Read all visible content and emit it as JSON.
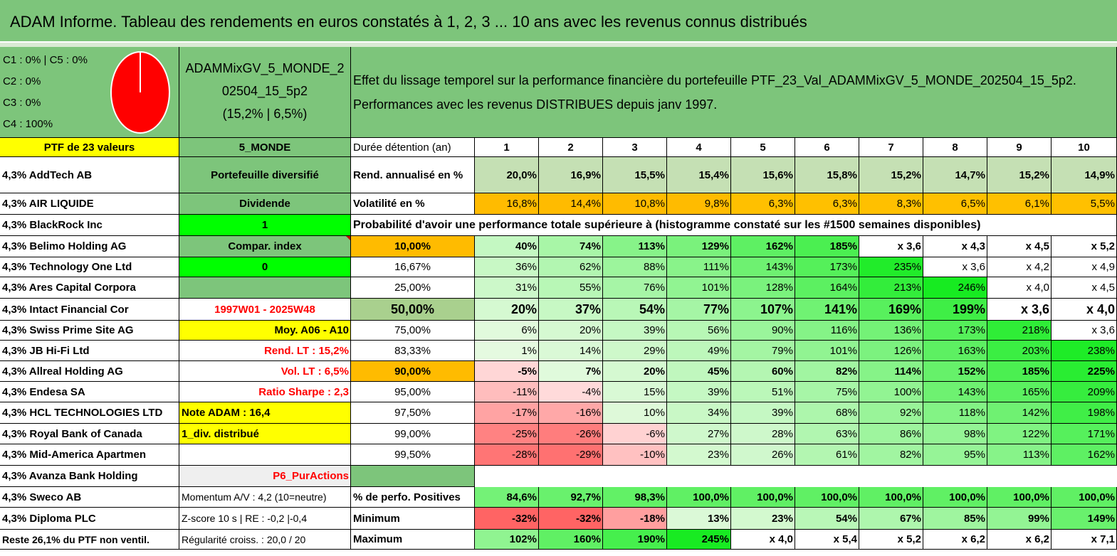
{
  "title": "ADAM Informe. Tableau des rendements en euros constatés à 1, 2, 3 ... 10 ans avec les revenus connus distribués",
  "allocation": {
    "c1c5": "C1 : 0% | C5 : 0%",
    "c2": "C2 : 0%",
    "c3": "C3 : 0%",
    "c4": "C4 : 100%",
    "pie_color": "#ff0000"
  },
  "portfolio": {
    "name_line1": "ADAMMixGV_5_MONDE_2",
    "name_line2": "02504_15_5p2",
    "name_line3": "(15,2% | 6,5%)"
  },
  "description": {
    "line1": "Effet du lissage temporel sur la performance financière du portefeuille PTF_23_Val_ADAMMixGV_5_MONDE_202504_15_5p2.",
    "line2": "Performances avec les revenus DISTRIBUES depuis janv 1997."
  },
  "holdings_header": "PTF de 23 valeurs",
  "holdings": [
    "4,3% AddTech AB",
    "4,3% AIR LIQUIDE",
    "4,3% BlackRock Inc",
    "4,3% Belimo Holding AG",
    "4,3% Technology One Ltd",
    "4,3% Ares Capital Corpora",
    "4,3% Intact Financial Cor",
    "4,3% Swiss Prime Site AG",
    "4,3% JB Hi-Fi Ltd",
    "4,3% Allreal Holding AG",
    "4,3% Endesa SA",
    "4,3% HCL TECHNOLOGIES LTD",
    "4,3% Royal Bank of Canada",
    "4,3% Mid-America Apartmen",
    "4,3% Avanza Bank Holding",
    "4,3% Sweco AB",
    "4,3% Diploma PLC",
    "Reste 26,1% du PTF non ventil."
  ],
  "info": {
    "zone": "5_MONDE",
    "type": "Portefeuille diversifié",
    "dividende": "Dividende",
    "div_val": "1",
    "compar": "Compar. index",
    "compar_val": "0",
    "period": "1997W01 - 2025W48",
    "moy": "Moy. A06 - A10",
    "rend_lt": "Rend. LT : 15,2%",
    "vol_lt": "Vol. LT : 6,5%",
    "sharpe": "Ratio Sharpe : 2,3",
    "note": "Note ADAM : 16,4",
    "distrib": "1_div. distribué",
    "category": "P6_PurActions",
    "momentum": "Momentum A/V : 4,2 (10=neutre)",
    "zscore": "Z-score 10 s | RE : -0,2 |-0,4",
    "regularite": "Régularité croiss. : 20,0 / 20"
  },
  "table": {
    "duration_label": "Durée détention (an)",
    "years": [
      "1",
      "2",
      "3",
      "4",
      "5",
      "6",
      "7",
      "8",
      "9",
      "10"
    ],
    "rend_label": "Rend. annualisé en %",
    "rend": [
      "20,0%",
      "16,9%",
      "15,5%",
      "15,4%",
      "15,6%",
      "15,8%",
      "15,2%",
      "14,7%",
      "15,2%",
      "14,9%"
    ],
    "vol_label": "Volatilité en %",
    "vol": [
      "16,8%",
      "14,4%",
      "10,8%",
      "9,8%",
      "6,3%",
      "6,3%",
      "8,3%",
      "6,5%",
      "6,1%",
      "5,5%"
    ],
    "prob_label": "Probabilité d'avoir une performance totale supérieure à (histogramme constaté sur les #1500 semaines disponibles)",
    "prob_rows": [
      {
        "p": "10,00%",
        "v": [
          "40%",
          "74%",
          "113%",
          "129%",
          "162%",
          "185%",
          "x 3,6",
          "x 4,3",
          "x 4,5",
          "x 5,2"
        ]
      },
      {
        "p": "16,67%",
        "v": [
          "36%",
          "62%",
          "88%",
          "111%",
          "143%",
          "173%",
          "235%",
          "x 3,6",
          "x 4,2",
          "x 4,9"
        ]
      },
      {
        "p": "25,00%",
        "v": [
          "31%",
          "55%",
          "76%",
          "101%",
          "128%",
          "164%",
          "213%",
          "246%",
          "x 4,0",
          "x 4,5"
        ]
      },
      {
        "p": "50,00%",
        "v": [
          "20%",
          "37%",
          "54%",
          "77%",
          "107%",
          "141%",
          "169%",
          "199%",
          "x 3,6",
          "x 4,0"
        ]
      },
      {
        "p": "75,00%",
        "v": [
          "6%",
          "20%",
          "39%",
          "56%",
          "90%",
          "116%",
          "136%",
          "173%",
          "218%",
          "x 3,6"
        ]
      },
      {
        "p": "83,33%",
        "v": [
          "1%",
          "14%",
          "29%",
          "49%",
          "79%",
          "101%",
          "126%",
          "163%",
          "203%",
          "238%"
        ]
      },
      {
        "p": "90,00%",
        "v": [
          "-5%",
          "7%",
          "20%",
          "45%",
          "60%",
          "82%",
          "114%",
          "152%",
          "185%",
          "225%"
        ]
      },
      {
        "p": "95,00%",
        "v": [
          "-11%",
          "-4%",
          "15%",
          "39%",
          "51%",
          "75%",
          "100%",
          "143%",
          "165%",
          "209%"
        ]
      },
      {
        "p": "97,50%",
        "v": [
          "-17%",
          "-16%",
          "10%",
          "34%",
          "39%",
          "68%",
          "92%",
          "118%",
          "142%",
          "198%"
        ]
      },
      {
        "p": "99,00%",
        "v": [
          "-25%",
          "-26%",
          "-6%",
          "27%",
          "28%",
          "63%",
          "86%",
          "98%",
          "122%",
          "171%"
        ]
      },
      {
        "p": "99,50%",
        "v": [
          "-28%",
          "-29%",
          "-10%",
          "23%",
          "26%",
          "61%",
          "82%",
          "95%",
          "113%",
          "162%"
        ]
      }
    ],
    "pos_label": "% de perfo. Positives",
    "pos": [
      "84,6%",
      "92,7%",
      "98,3%",
      "100,0%",
      "100,0%",
      "100,0%",
      "100,0%",
      "100,0%",
      "100,0%",
      "100,0%"
    ],
    "min_label": "Minimum",
    "min": [
      "-32%",
      "-32%",
      "-18%",
      "13%",
      "23%",
      "54%",
      "67%",
      "85%",
      "99%",
      "149%"
    ],
    "max_label": "Maximum",
    "max": [
      "102%",
      "160%",
      "190%",
      "245%",
      "x 4,0",
      "x 5,4",
      "x 5,2",
      "x 6,2",
      "x 6,2",
      "x 7,1"
    ]
  }
}
